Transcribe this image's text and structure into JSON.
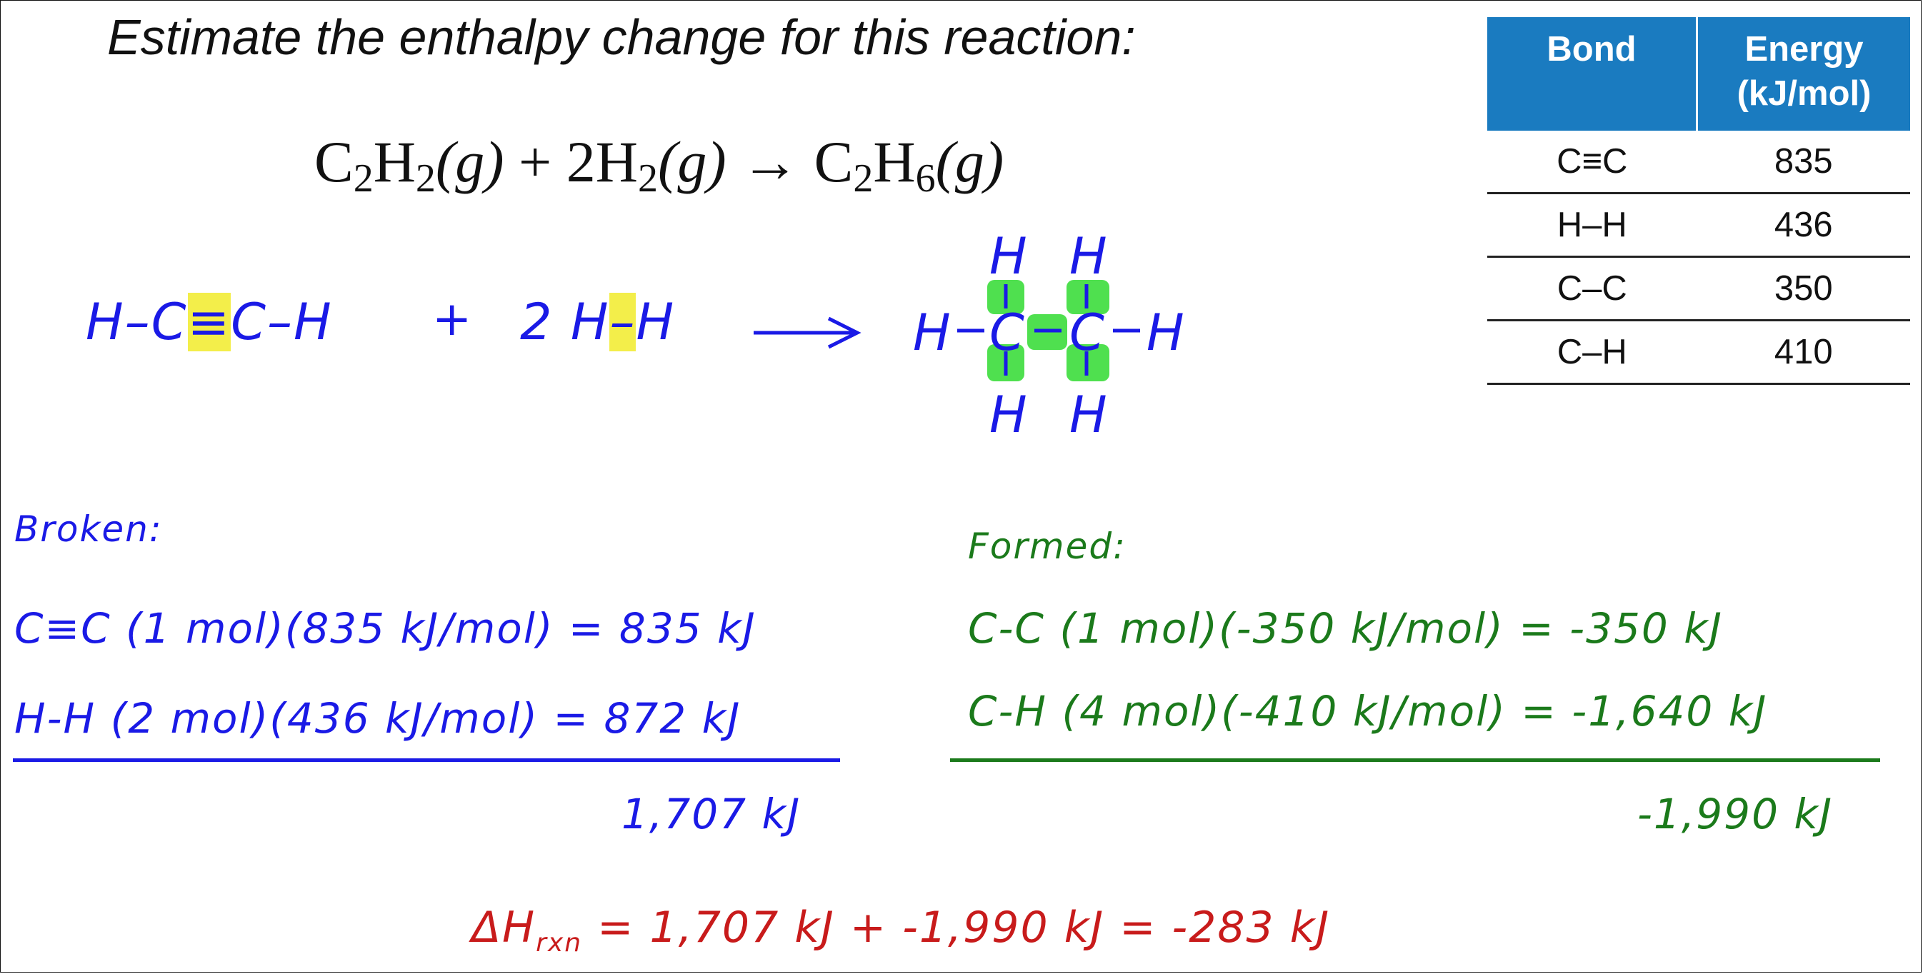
{
  "title": "Estimate the enthalpy change for this reaction:",
  "equation": {
    "reactant1": "C",
    "r1_sub1": "2",
    "r1_h": "H",
    "r1_sub2": "2",
    "r1_phase": "(g)",
    "plus": " + ",
    "coef": "2H",
    "r2_sub": "2",
    "r2_phase": "(g)",
    "arrow": " → ",
    "product": "C",
    "p_sub1": "2",
    "p_h": "H",
    "p_sub2": "6",
    "p_phase": "(g)"
  },
  "table": {
    "headers": [
      "Bond",
      "Energy (kJ/mol)"
    ],
    "rows": [
      {
        "bond": "C≡C",
        "energy": "835"
      },
      {
        "bond": "H–H",
        "energy": "436"
      },
      {
        "bond": "C–C",
        "energy": "350"
      },
      {
        "bond": "C–H",
        "energy": "410"
      }
    ]
  },
  "structures": {
    "acetylene_left": "H–C",
    "acetylene_triple": "≡",
    "acetylene_right": "C–H",
    "plus": "+",
    "h2_coef": "2",
    "h2_left": "H",
    "h2_bond": "–",
    "h2_right": "H",
    "ethane_h": "H",
    "ethane_c": "C"
  },
  "broken": {
    "heading": "Broken:",
    "line1": "C≡C   (1 mol)(835 kJ/mol)  = 835 kJ",
    "line2": "H-H  (2 mol)(436 kJ/mol) = 872 kJ",
    "total": "1,707 kJ"
  },
  "formed": {
    "heading": "Formed:",
    "line1": "C-C    (1 mol)(-350 kJ/mol) =  -350 kJ",
    "line2": "C-H    (4 mol)(-410 kJ/mol) = -1,640 kJ",
    "total": "-1,990 kJ"
  },
  "result": {
    "delta": "ΔH",
    "sub": "rxn",
    "expr": " = 1,707 kJ + -1,990 kJ  = -283 kJ"
  },
  "colors": {
    "broken": "#1a1ae6",
    "formed": "#1b7a1b",
    "result": "#c81b1b",
    "table_header": "#1a7bc0",
    "highlight_yellow": "#f3ee4a",
    "highlight_green": "#4fe04f"
  }
}
